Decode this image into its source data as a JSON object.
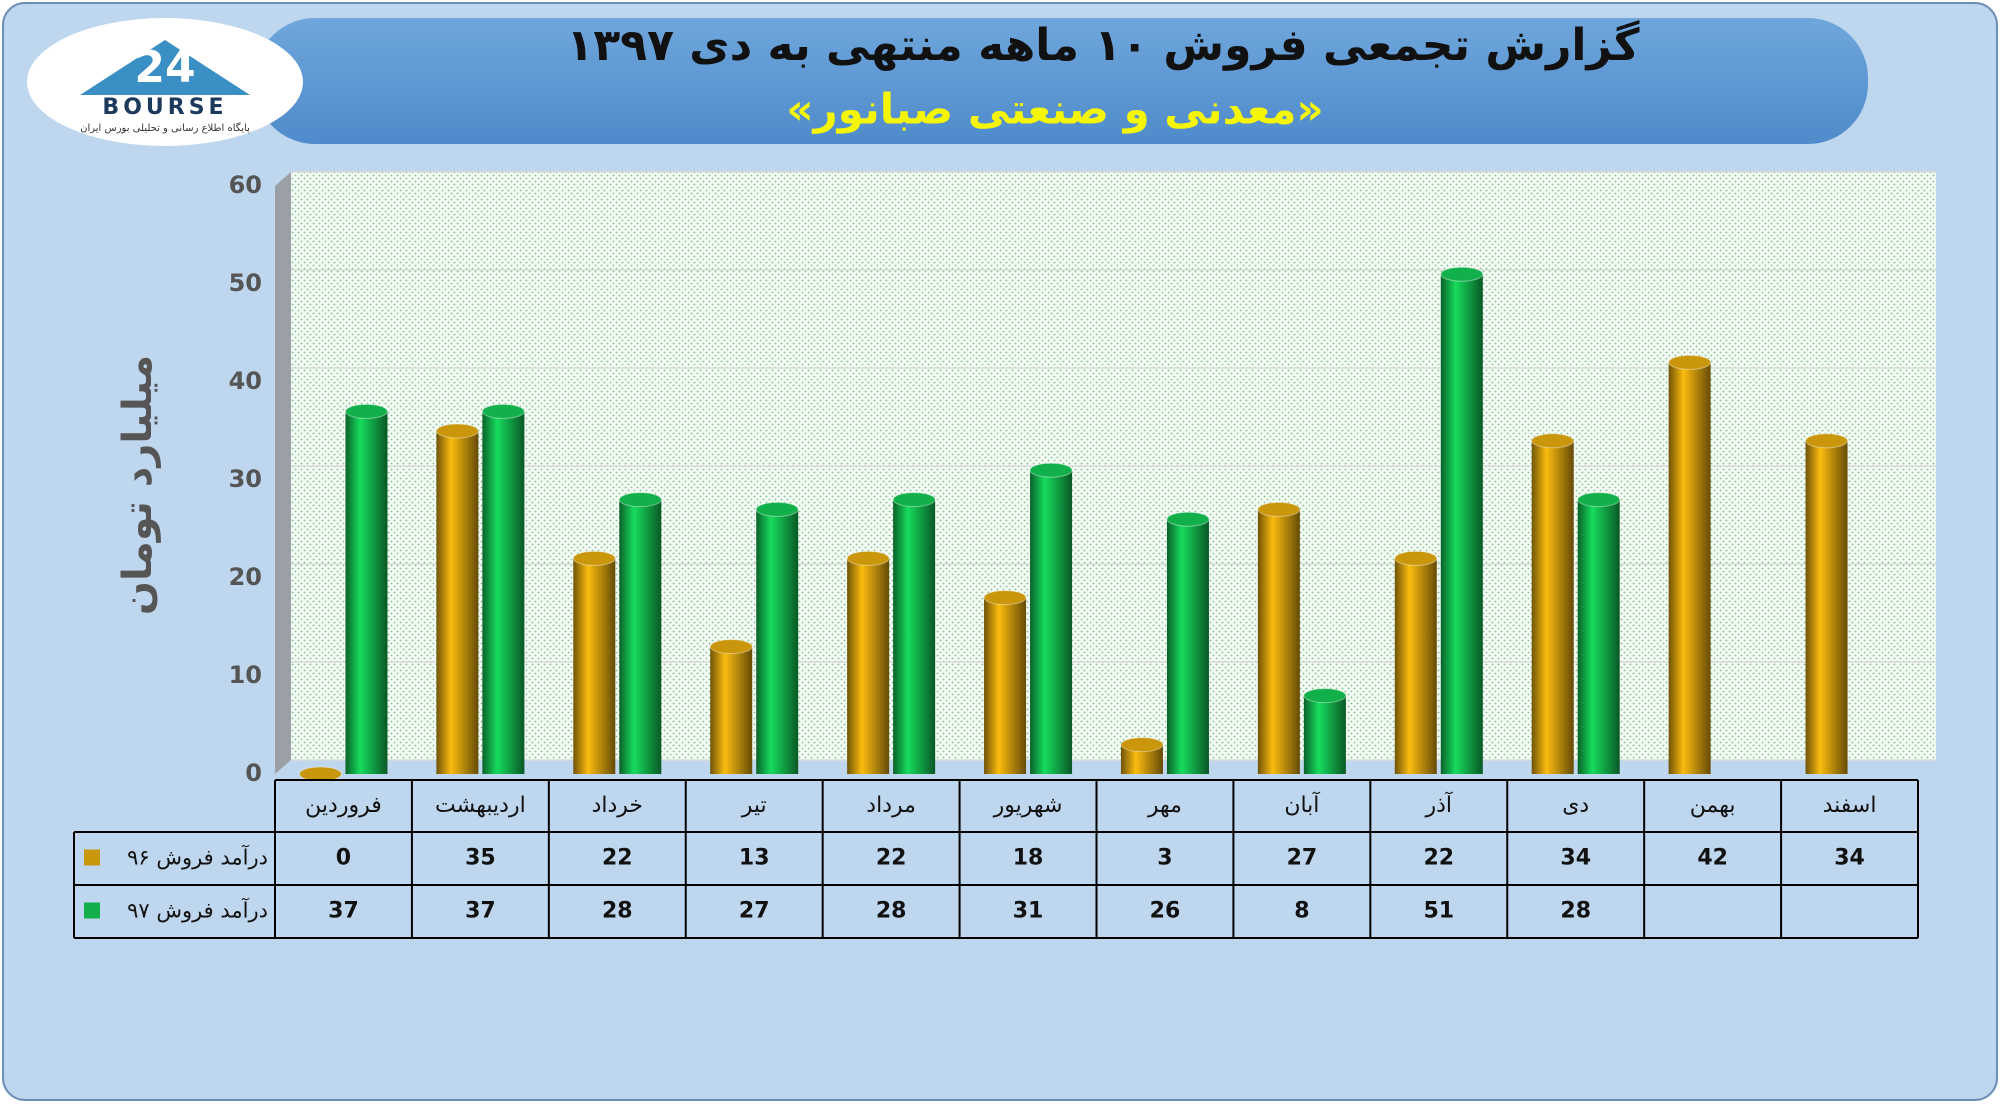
{
  "logo": {
    "number": "24",
    "text": "BOURSE",
    "caption": "پایگاه اطلاع رسانی و تحلیلی بورس ایران"
  },
  "chart_data": {
    "type": "bar",
    "title": "گزارش تجمعی فروش ۱۰ ماهه منتهی به دی ۱۳۹۷",
    "subtitle": "«معدنی و صنعتی صبانور»",
    "y_label": "میلیارد تومان",
    "categories": [
      "فروردین",
      "اردیبهشت",
      "خرداد",
      "تیر",
      "مرداد",
      "شهریور",
      "مهر",
      "آبان",
      "آذر",
      "دی",
      "بهمن",
      "اسفند"
    ],
    "series": [
      {
        "name": "درآمد فروش ۹۶",
        "color": "#c9960c",
        "values": [
          0,
          35,
          22,
          13,
          22,
          18,
          3,
          27,
          22,
          34,
          42,
          34
        ]
      },
      {
        "name": "درآمد فروش ۹۷",
        "color": "#12b04a",
        "values": [
          37,
          37,
          28,
          27,
          28,
          31,
          26,
          8,
          51,
          28,
          null,
          null
        ]
      }
    ],
    "ylim": [
      0,
      60
    ],
    "yticks": [
      0,
      10,
      20,
      30,
      40,
      50,
      60
    ],
    "grid": true,
    "data_table": true
  }
}
